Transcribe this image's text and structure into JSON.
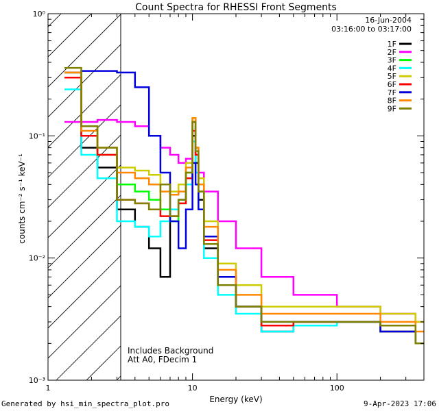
{
  "chart_data": {
    "type": "line",
    "title": "Count Spectra for RHESSI Front Segments",
    "xlabel": "Energy (keV)",
    "ylabel": "counts cm⁻² s⁻¹ keV⁻¹",
    "xscale": "log",
    "yscale": "log",
    "xlim": [
      1,
      400
    ],
    "ylim": [
      0.001,
      1
    ],
    "x_tick_labels": [
      "1",
      "10",
      "100"
    ],
    "y_tick_labels": [
      "10⁻³",
      "10⁻²",
      "10⁻¹",
      "10⁰"
    ],
    "date": "16-Jun-2004",
    "time_range": "03:16:00 to 03:17:00",
    "annotations": [
      "Includes Background",
      "Att A0, FDecim 1"
    ],
    "hatched_below_keV": 3,
    "series": [
      {
        "name": "1F",
        "color": "#000000",
        "x": [
          1.3,
          1.7,
          2.2,
          3.0,
          4.0,
          5.0,
          6.0,
          7.0,
          8.0,
          9.0,
          10.0,
          10.5,
          11.0,
          12.0,
          15.0,
          20.0,
          30.0,
          50.0,
          100.0,
          200.0,
          350.0
        ],
        "y": [
          0.3,
          0.08,
          0.055,
          0.025,
          0.018,
          0.012,
          0.007,
          0.025,
          0.03,
          0.045,
          0.1,
          0.06,
          0.03,
          0.012,
          0.006,
          0.004,
          0.0025,
          0.003,
          0.003,
          0.0025,
          0.002
        ]
      },
      {
        "name": "2F",
        "color": "#ff00ff",
        "x": [
          1.3,
          1.7,
          2.2,
          3.0,
          4.0,
          5.0,
          6.0,
          7.0,
          8.0,
          9.0,
          10.0,
          10.5,
          11.0,
          12.0,
          15.0,
          20.0,
          30.0,
          50.0,
          100.0,
          200.0,
          350.0
        ],
        "y": [
          0.13,
          0.13,
          0.135,
          0.13,
          0.12,
          0.1,
          0.08,
          0.07,
          0.06,
          0.065,
          0.13,
          0.08,
          0.05,
          0.035,
          0.02,
          0.012,
          0.007,
          0.005,
          0.004,
          0.0035,
          0.003
        ]
      },
      {
        "name": "3F",
        "color": "#00ff00",
        "x": [
          1.3,
          1.7,
          2.2,
          3.0,
          4.0,
          5.0,
          6.0,
          7.0,
          8.0,
          9.0,
          10.0,
          10.5,
          11.0,
          12.0,
          15.0,
          20.0,
          30.0,
          50.0,
          100.0,
          200.0,
          350.0
        ],
        "y": [
          0.33,
          0.1,
          0.07,
          0.04,
          0.035,
          0.03,
          0.025,
          0.02,
          0.028,
          0.05,
          0.14,
          0.08,
          0.035,
          0.013,
          0.006,
          0.004,
          0.0028,
          0.003,
          0.003,
          0.0025,
          0.002
        ]
      },
      {
        "name": "4F",
        "color": "#00ffff",
        "x": [
          1.3,
          1.7,
          2.2,
          3.0,
          4.0,
          5.0,
          6.0,
          7.0,
          8.0,
          9.0,
          10.0,
          10.5,
          11.0,
          12.0,
          15.0,
          20.0,
          30.0,
          50.0,
          100.0,
          200.0,
          350.0
        ],
        "y": [
          0.24,
          0.07,
          0.045,
          0.02,
          0.018,
          0.015,
          0.02,
          0.025,
          0.03,
          0.04,
          0.09,
          0.05,
          0.025,
          0.01,
          0.005,
          0.0035,
          0.0025,
          0.0028,
          0.003,
          0.0025,
          0.002
        ]
      },
      {
        "name": "5F",
        "color": "#cccc00",
        "x": [
          1.3,
          1.7,
          2.2,
          3.0,
          4.0,
          5.0,
          6.0,
          7.0,
          8.0,
          9.0,
          10.0,
          10.5,
          11.0,
          12.0,
          15.0,
          20.0,
          30.0,
          50.0,
          100.0,
          200.0,
          350.0
        ],
        "y": [
          0.33,
          0.12,
          0.08,
          0.055,
          0.052,
          0.048,
          0.04,
          0.035,
          0.04,
          0.06,
          0.14,
          0.08,
          0.045,
          0.02,
          0.009,
          0.006,
          0.004,
          0.004,
          0.004,
          0.0035,
          0.003
        ]
      },
      {
        "name": "6F",
        "color": "#ff0000",
        "x": [
          1.3,
          1.7,
          2.2,
          3.0,
          4.0,
          5.0,
          6.0,
          7.0,
          8.0,
          9.0,
          10.0,
          10.5,
          11.0,
          12.0,
          15.0,
          20.0,
          30.0,
          50.0,
          100.0,
          200.0,
          350.0
        ],
        "y": [
          0.3,
          0.1,
          0.07,
          0.03,
          0.028,
          0.025,
          0.022,
          0.022,
          0.028,
          0.045,
          0.11,
          0.07,
          0.035,
          0.014,
          0.006,
          0.004,
          0.0028,
          0.003,
          0.003,
          0.0025,
          0.002
        ]
      },
      {
        "name": "7F",
        "color": "#0000dd",
        "x": [
          1.3,
          1.7,
          2.2,
          3.0,
          4.0,
          5.0,
          6.0,
          7.0,
          8.0,
          9.0,
          10.0,
          10.5,
          11.0,
          12.0,
          15.0,
          20.0,
          30.0,
          50.0,
          100.0,
          200.0,
          350.0
        ],
        "y": [
          0.33,
          0.34,
          0.34,
          0.33,
          0.25,
          0.1,
          0.05,
          0.02,
          0.012,
          0.025,
          0.06,
          0.04,
          0.025,
          0.015,
          0.007,
          0.004,
          0.003,
          0.003,
          0.003,
          0.0025,
          0.002
        ]
      },
      {
        "name": "8F",
        "color": "#ff8800",
        "x": [
          1.3,
          1.7,
          2.2,
          3.0,
          4.0,
          5.0,
          6.0,
          7.0,
          8.0,
          9.0,
          10.0,
          10.5,
          11.0,
          12.0,
          15.0,
          20.0,
          30.0,
          50.0,
          100.0,
          200.0,
          350.0
        ],
        "y": [
          0.33,
          0.11,
          0.08,
          0.05,
          0.045,
          0.04,
          0.035,
          0.033,
          0.035,
          0.055,
          0.14,
          0.08,
          0.04,
          0.018,
          0.008,
          0.005,
          0.0035,
          0.0035,
          0.0035,
          0.003,
          0.0025
        ]
      },
      {
        "name": "9F",
        "color": "#808000",
        "x": [
          1.3,
          1.7,
          2.2,
          3.0,
          4.0,
          5.0,
          6.0,
          7.0,
          8.0,
          9.0,
          10.0,
          10.5,
          11.0,
          12.0,
          15.0,
          20.0,
          30.0,
          50.0,
          100.0,
          200.0,
          350.0
        ],
        "y": [
          0.36,
          0.12,
          0.08,
          0.03,
          0.028,
          0.025,
          0.04,
          0.022,
          0.03,
          0.05,
          0.13,
          0.075,
          0.035,
          0.013,
          0.006,
          0.004,
          0.003,
          0.003,
          0.003,
          0.0028,
          0.002
        ]
      }
    ]
  },
  "footer": {
    "left": "Generated by hsi_min_spectra_plot.pro",
    "right": "9-Apr-2023 17:06"
  }
}
